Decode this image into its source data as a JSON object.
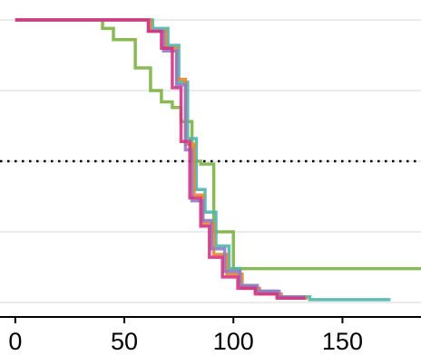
{
  "chart_data": {
    "type": "line",
    "title": "",
    "xlabel": "",
    "ylabel": "",
    "xlim": [
      -7,
      186
    ],
    "ylim": [
      0,
      1
    ],
    "x_ticks": [
      0,
      50,
      100,
      150
    ],
    "x_tick_labels": [
      "0",
      "50",
      "100",
      "150"
    ],
    "y_gridlines": [
      0,
      0.25,
      0.5,
      0.75,
      1.0
    ],
    "reference_line": {
      "y": 0.5,
      "style": "dotted"
    },
    "grid": true,
    "legend": "none",
    "series": [
      {
        "color": "#7CB342",
        "points": [
          [
            0,
            1.0
          ],
          [
            40,
            1.0
          ],
          [
            40,
            0.97
          ],
          [
            45,
            0.97
          ],
          [
            45,
            0.93
          ],
          [
            55,
            0.93
          ],
          [
            55,
            0.83
          ],
          [
            62,
            0.83
          ],
          [
            62,
            0.75
          ],
          [
            67,
            0.75
          ],
          [
            67,
            0.71
          ],
          [
            72,
            0.71
          ],
          [
            72,
            0.69
          ],
          [
            76,
            0.69
          ],
          [
            76,
            0.64
          ],
          [
            81,
            0.64
          ],
          [
            81,
            0.5
          ],
          [
            85,
            0.5
          ],
          [
            85,
            0.49
          ],
          [
            91,
            0.49
          ],
          [
            91,
            0.25
          ],
          [
            100,
            0.25
          ],
          [
            100,
            0.12
          ],
          [
            186,
            0.12
          ]
        ]
      },
      {
        "color": "#4DB6AC",
        "points": [
          [
            0,
            1.0
          ],
          [
            63,
            1.0
          ],
          [
            63,
            0.97
          ],
          [
            70,
            0.97
          ],
          [
            70,
            0.91
          ],
          [
            75,
            0.91
          ],
          [
            75,
            0.78
          ],
          [
            79,
            0.78
          ],
          [
            79,
            0.58
          ],
          [
            83,
            0.58
          ],
          [
            83,
            0.4
          ],
          [
            87,
            0.4
          ],
          [
            87,
            0.32
          ],
          [
            92,
            0.32
          ],
          [
            92,
            0.2
          ],
          [
            98,
            0.2
          ],
          [
            98,
            0.12
          ],
          [
            103,
            0.12
          ],
          [
            103,
            0.06
          ],
          [
            110,
            0.06
          ],
          [
            110,
            0.04
          ],
          [
            120,
            0.04
          ],
          [
            120,
            0.02
          ],
          [
            135,
            0.02
          ],
          [
            135,
            0.01
          ],
          [
            172,
            0.01
          ]
        ]
      },
      {
        "color": "#E6862E",
        "points": [
          [
            0,
            1.0
          ],
          [
            62,
            1.0
          ],
          [
            62,
            0.96
          ],
          [
            69,
            0.96
          ],
          [
            69,
            0.9
          ],
          [
            74,
            0.9
          ],
          [
            74,
            0.79
          ],
          [
            78,
            0.79
          ],
          [
            78,
            0.56
          ],
          [
            82,
            0.56
          ],
          [
            82,
            0.38
          ],
          [
            86,
            0.38
          ],
          [
            86,
            0.28
          ],
          [
            91,
            0.28
          ],
          [
            91,
            0.17
          ],
          [
            97,
            0.17
          ],
          [
            97,
            0.1
          ],
          [
            104,
            0.1
          ],
          [
            104,
            0.05
          ],
          [
            112,
            0.05
          ],
          [
            112,
            0.03
          ],
          [
            122,
            0.03
          ],
          [
            122,
            0.015
          ],
          [
            134,
            0.015
          ]
        ]
      },
      {
        "color": "#8E7CC3",
        "points": [
          [
            0,
            1.0
          ],
          [
            61,
            1.0
          ],
          [
            61,
            0.96
          ],
          [
            68,
            0.96
          ],
          [
            68,
            0.89
          ],
          [
            74,
            0.89
          ],
          [
            74,
            0.77
          ],
          [
            78,
            0.77
          ],
          [
            78,
            0.54
          ],
          [
            81,
            0.54
          ],
          [
            81,
            0.36
          ],
          [
            86,
            0.36
          ],
          [
            86,
            0.29
          ],
          [
            90,
            0.29
          ],
          [
            90,
            0.19
          ],
          [
            96,
            0.19
          ],
          [
            96,
            0.11
          ],
          [
            103,
            0.11
          ],
          [
            103,
            0.06
          ],
          [
            111,
            0.06
          ],
          [
            111,
            0.04
          ],
          [
            121,
            0.04
          ],
          [
            121,
            0.02
          ],
          [
            133,
            0.02
          ]
        ]
      },
      {
        "color": "#D63384",
        "points": [
          [
            0,
            1.0
          ],
          [
            61,
            1.0
          ],
          [
            61,
            0.96
          ],
          [
            67,
            0.96
          ],
          [
            67,
            0.9
          ],
          [
            72,
            0.9
          ],
          [
            72,
            0.76
          ],
          [
            76,
            0.76
          ],
          [
            76,
            0.57
          ],
          [
            80,
            0.57
          ],
          [
            80,
            0.37
          ],
          [
            85,
            0.37
          ],
          [
            85,
            0.27
          ],
          [
            89,
            0.27
          ],
          [
            89,
            0.16
          ],
          [
            95,
            0.16
          ],
          [
            95,
            0.09
          ],
          [
            102,
            0.09
          ],
          [
            102,
            0.05
          ],
          [
            110,
            0.05
          ],
          [
            110,
            0.03
          ],
          [
            120,
            0.03
          ],
          [
            120,
            0.015
          ],
          [
            133,
            0.015
          ]
        ]
      }
    ]
  }
}
